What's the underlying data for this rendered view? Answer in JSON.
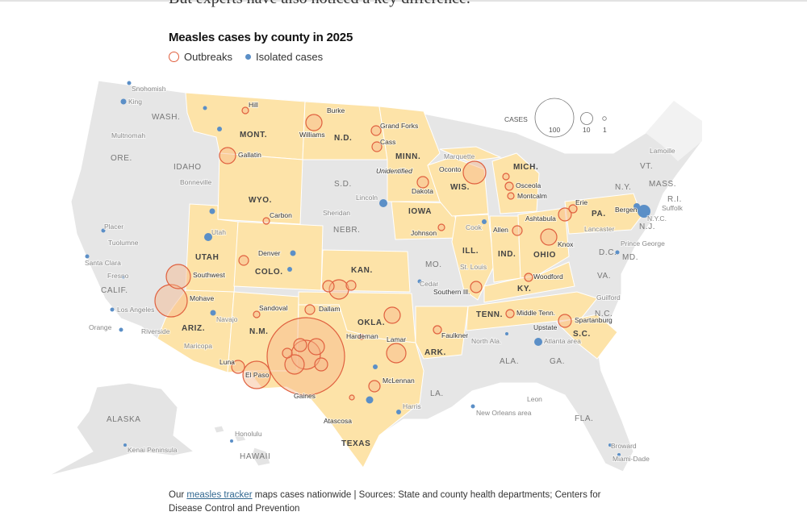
{
  "intro_text": "But experts have also noticed a key difference.",
  "title": "Measles cases by county in 2025",
  "legend": {
    "outbreaks": "Outbreaks",
    "isolated": "Isolated cases"
  },
  "size_legend": {
    "title": "CASES",
    "values": [
      "100",
      "10",
      "1"
    ]
  },
  "colors": {
    "outbreak_state": "#fde3a8",
    "no_outbreak_state": "#e4e4e4",
    "other_state": "#f0f0f0",
    "outbreak_stroke": "#e0603f",
    "outbreak_fill": "#f7b58a",
    "isolated": "#5b8fc7"
  },
  "states": [
    {
      "abbr": "WASH.",
      "outbreak": false
    },
    {
      "abbr": "ORE.",
      "outbreak": false
    },
    {
      "abbr": "IDAHO",
      "outbreak": false
    },
    {
      "abbr": "MONT.",
      "outbreak": true
    },
    {
      "abbr": "WYO.",
      "outbreak": true
    },
    {
      "abbr": "N.D.",
      "outbreak": true
    },
    {
      "abbr": "S.D.",
      "outbreak": false
    },
    {
      "abbr": "NEBR.",
      "outbreak": false
    },
    {
      "abbr": "MINN.",
      "outbreak": true
    },
    {
      "abbr": "IOWA",
      "outbreak": true
    },
    {
      "abbr": "WIS.",
      "outbreak": true
    },
    {
      "abbr": "MICH.",
      "outbreak": true
    },
    {
      "abbr": "CALIF.",
      "outbreak": false
    },
    {
      "abbr": "UTAH",
      "outbreak": true
    },
    {
      "abbr": "COLO.",
      "outbreak": true
    },
    {
      "abbr": "ARIZ.",
      "outbreak": true
    },
    {
      "abbr": "N.M.",
      "outbreak": true
    },
    {
      "abbr": "KAN.",
      "outbreak": true
    },
    {
      "abbr": "MO.",
      "outbreak": false
    },
    {
      "abbr": "ILL.",
      "outbreak": true
    },
    {
      "abbr": "IND.",
      "outbreak": true
    },
    {
      "abbr": "OHIO",
      "outbreak": true
    },
    {
      "abbr": "PA.",
      "outbreak": true
    },
    {
      "abbr": "N.Y.",
      "outbreak": false
    },
    {
      "abbr": "VT.",
      "outbreak": false
    },
    {
      "abbr": "MASS.",
      "outbreak": false
    },
    {
      "abbr": "R.I.",
      "outbreak": false
    },
    {
      "abbr": "N.J.",
      "outbreak": false
    },
    {
      "abbr": "D.C.",
      "outbreak": false
    },
    {
      "abbr": "MD.",
      "outbreak": false
    },
    {
      "abbr": "VA.",
      "outbreak": false
    },
    {
      "abbr": "KY.",
      "outbreak": true
    },
    {
      "abbr": "TENN.",
      "outbreak": true
    },
    {
      "abbr": "N.C.",
      "outbreak": false
    },
    {
      "abbr": "S.C.",
      "outbreak": true
    },
    {
      "abbr": "OKLA.",
      "outbreak": true
    },
    {
      "abbr": "ARK.",
      "outbreak": true
    },
    {
      "abbr": "TEXAS",
      "outbreak": true
    },
    {
      "abbr": "LA.",
      "outbreak": false
    },
    {
      "abbr": "ALA.",
      "outbreak": false
    },
    {
      "abbr": "GA.",
      "outbreak": false
    },
    {
      "abbr": "FLA.",
      "outbreak": false
    },
    {
      "abbr": "ALASKA",
      "outbreak": false
    },
    {
      "abbr": "HAWAII",
      "outbreak": false
    }
  ],
  "counties": [
    "Snohomish",
    "King",
    "Multnomah",
    "Bonneville",
    "Hill",
    "Gallatin",
    "Burke",
    "Williams",
    "Grand Forks",
    "Cass",
    "Unidentified",
    "Dakota",
    "Marquette",
    "Oconto",
    "Osceola",
    "Montcalm",
    "Placer",
    "Tuolumne",
    "Santa Clara",
    "Fresno",
    "Los Angeles",
    "Orange",
    "Riverside",
    "Utah",
    "Carbon",
    "Lincoln",
    "Sheridan",
    "Johnson",
    "Cook",
    "Allen",
    "Ashtabula",
    "Erie",
    "Bergen",
    "Suffolk",
    "N.Y.C.",
    "Lamoille",
    "Lancaster",
    "Prince George",
    "Knox",
    "Denver",
    "Southwest",
    "Mohave",
    "Navajo",
    "Sandoval",
    "Dallam",
    "Maricopa",
    "Luna",
    "El Paso",
    "Gaines",
    "Hardeman",
    "Lamar",
    "McLennan",
    "Atascosa",
    "Harris",
    "Faulkner",
    "St. Louis",
    "Cedar",
    "Southern Ill.",
    "Woodford",
    "Middle Tenn.",
    "Upstate",
    "Spartanburg",
    "Atlanta area",
    "Guilford",
    "North Ala.",
    "Leon",
    "New Orleans area",
    "Broward",
    "Miami-Dade",
    "Kenai Peninsula",
    "Honolulu"
  ],
  "footer": {
    "link_text": "measles tracker",
    "prefix": "Our",
    "text": "maps cases nationwide | Sources: State and county health departments; Centers for Disease Control and Prevention"
  }
}
